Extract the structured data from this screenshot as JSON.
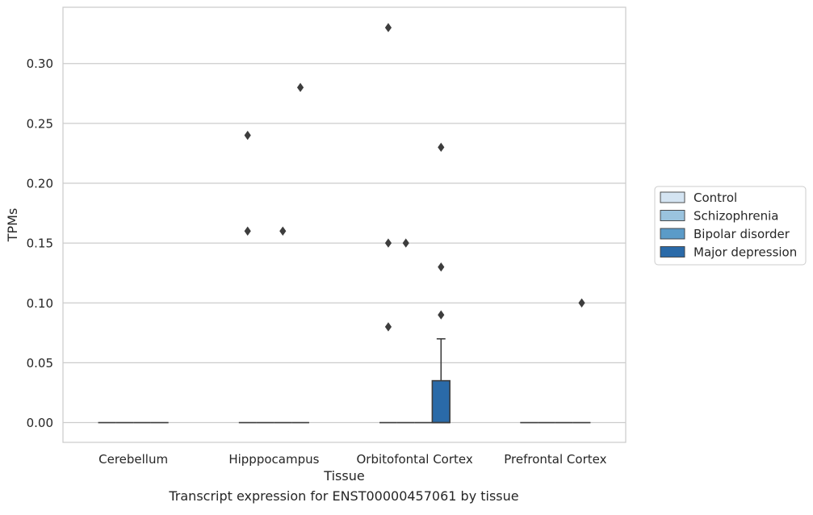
{
  "chart_data": {
    "type": "box",
    "xlabel": "Tissue",
    "ylabel": "TPMs",
    "caption": "Transcript expression for ENST00000457061 by tissue",
    "categories": [
      "Cerebellum",
      "Hipppocampus",
      "Orbitofontal Cortex",
      "Prefrontal Cortex"
    ],
    "ylim": [
      -0.0165,
      0.347
    ],
    "yticks": [
      0.0,
      0.05,
      0.1,
      0.15,
      0.2,
      0.25,
      0.3
    ],
    "ytick_labels": [
      "0.00",
      "0.05",
      "0.10",
      "0.15",
      "0.20",
      "0.25",
      "0.30"
    ],
    "grid": true,
    "legend_position": "right",
    "series": [
      {
        "name": "Control",
        "color": "#d4e4f2",
        "boxes": [
          {
            "category": "Cerebellum",
            "q1": 0,
            "median": 0,
            "q3": 0,
            "whisker_low": 0,
            "whisker_high": 0,
            "outliers": []
          },
          {
            "category": "Hipppocampus",
            "q1": 0,
            "median": 0,
            "q3": 0,
            "whisker_low": 0,
            "whisker_high": 0,
            "outliers": [
              0.24,
              0.16
            ]
          },
          {
            "category": "Orbitofontal Cortex",
            "q1": 0,
            "median": 0,
            "q3": 0,
            "whisker_low": 0,
            "whisker_high": 0,
            "outliers": [
              0.33,
              0.15,
              0.08
            ]
          },
          {
            "category": "Prefrontal Cortex",
            "q1": 0,
            "median": 0,
            "q3": 0,
            "whisker_low": 0,
            "whisker_high": 0,
            "outliers": []
          }
        ]
      },
      {
        "name": "Schizophrenia",
        "color": "#9ac3de",
        "boxes": [
          {
            "category": "Cerebellum",
            "q1": 0,
            "median": 0,
            "q3": 0,
            "whisker_low": 0,
            "whisker_high": 0,
            "outliers": []
          },
          {
            "category": "Hipppocampus",
            "q1": 0,
            "median": 0,
            "q3": 0,
            "whisker_low": 0,
            "whisker_high": 0,
            "outliers": []
          },
          {
            "category": "Orbitofontal Cortex",
            "q1": 0,
            "median": 0,
            "q3": 0,
            "whisker_low": 0,
            "whisker_high": 0,
            "outliers": [
              0.15
            ]
          },
          {
            "category": "Prefrontal Cortex",
            "q1": 0,
            "median": 0,
            "q3": 0,
            "whisker_low": 0,
            "whisker_high": 0,
            "outliers": []
          }
        ]
      },
      {
        "name": "Bipolar disorder",
        "color": "#5b9bc8",
        "boxes": [
          {
            "category": "Cerebellum",
            "q1": 0,
            "median": 0,
            "q3": 0,
            "whisker_low": 0,
            "whisker_high": 0,
            "outliers": []
          },
          {
            "category": "Hipppocampus",
            "q1": 0,
            "median": 0,
            "q3": 0,
            "whisker_low": 0,
            "whisker_high": 0,
            "outliers": [
              0.16
            ]
          },
          {
            "category": "Orbitofontal Cortex",
            "q1": 0,
            "median": 0,
            "q3": 0,
            "whisker_low": 0,
            "whisker_high": 0,
            "outliers": []
          },
          {
            "category": "Prefrontal Cortex",
            "q1": 0,
            "median": 0,
            "q3": 0,
            "whisker_low": 0,
            "whisker_high": 0,
            "outliers": []
          }
        ]
      },
      {
        "name": "Major depression",
        "color": "#2a6aa8",
        "boxes": [
          {
            "category": "Cerebellum",
            "q1": 0,
            "median": 0,
            "q3": 0,
            "whisker_low": 0,
            "whisker_high": 0,
            "outliers": []
          },
          {
            "category": "Hipppocampus",
            "q1": 0,
            "median": 0,
            "q3": 0,
            "whisker_low": 0,
            "whisker_high": 0,
            "outliers": [
              0.28
            ]
          },
          {
            "category": "Orbitofontal Cortex",
            "q1": 0,
            "median": 0,
            "q3": 0.035,
            "whisker_low": 0,
            "whisker_high": 0.07,
            "outliers": [
              0.23,
              0.13,
              0.09
            ]
          },
          {
            "category": "Prefrontal Cortex",
            "q1": 0,
            "median": 0,
            "q3": 0,
            "whisker_low": 0,
            "whisker_high": 0,
            "outliers": [
              0.1
            ]
          }
        ]
      }
    ]
  }
}
